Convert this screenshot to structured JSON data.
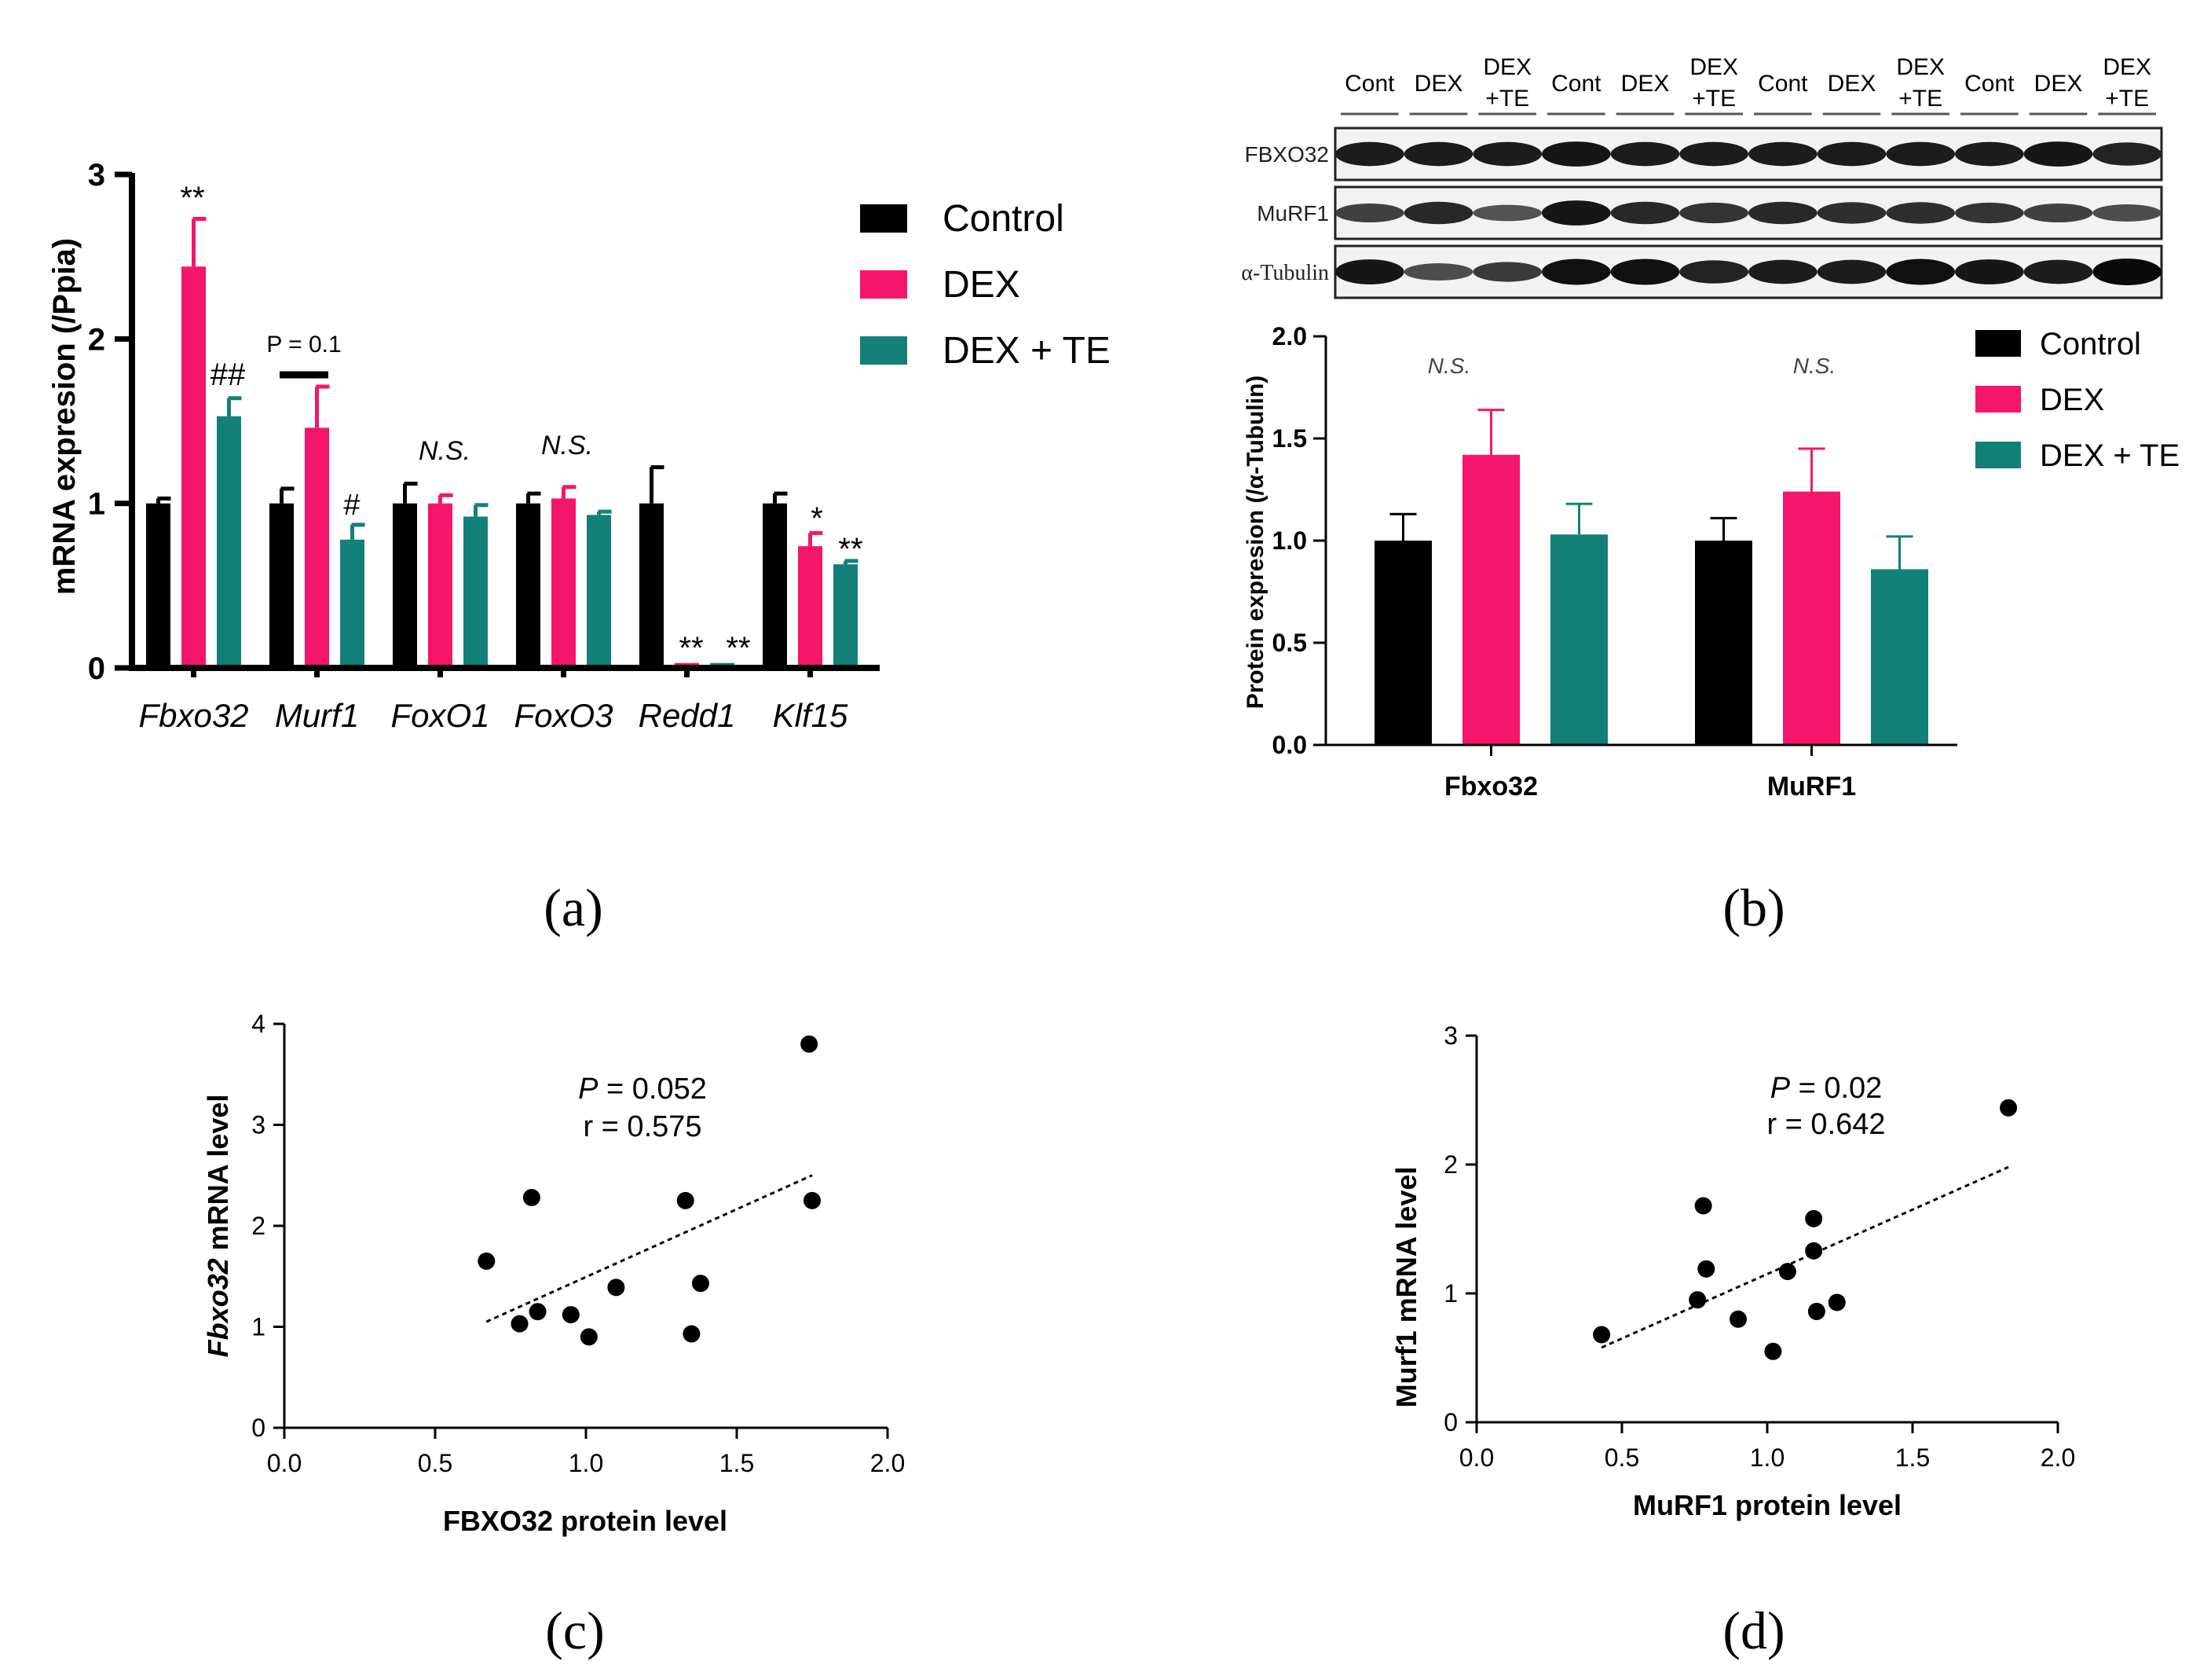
{
  "colors": {
    "control": "#000000",
    "dex": "#F5166B",
    "dexte": "#128078"
  },
  "panel_labels": {
    "a": "(a)",
    "b": "(b)",
    "c": "(c)",
    "d": "(d)"
  },
  "chart_data": [
    {
      "id": "a",
      "type": "bar",
      "ylabel": "mRNA expresion (/Ppia)",
      "ylim": [
        0,
        3
      ],
      "yticks": [
        "0",
        "1",
        "2",
        "3"
      ],
      "categories": [
        "Fbxo32",
        "Murf1",
        "FoxO1",
        "FoxO3",
        "Redd1",
        "Klf15"
      ],
      "legend": [
        "Control",
        "DEX",
        "DEX + TE"
      ],
      "series": [
        {
          "name": "Control",
          "values": [
            1.0,
            1.0,
            1.0,
            1.0,
            1.0,
            1.0
          ],
          "errors": [
            0.03,
            0.09,
            0.12,
            0.06,
            0.22,
            0.06
          ]
        },
        {
          "name": "DEX",
          "values": [
            2.44,
            1.46,
            1.0,
            1.03,
            0.03,
            0.74
          ],
          "errors": [
            0.29,
            0.25,
            0.05,
            0.07,
            0.0,
            0.08
          ]
        },
        {
          "name": "DEX + TE",
          "values": [
            1.53,
            0.78,
            0.92,
            0.93,
            0.03,
            0.63
          ],
          "errors": [
            0.11,
            0.09,
            0.07,
            0.02,
            0.0,
            0.02
          ]
        }
      ],
      "annotations": {
        "fbxo32_dex": "**",
        "fbxo32_te": "##",
        "murf1_p": "P = 0.1",
        "murf1_te": "#",
        "foxo1_ns": "N.S.",
        "foxo3_ns": "N.S.",
        "redd1_dex": "**",
        "redd1_te": "**",
        "klf15_dex": "*",
        "klf15_te": "**"
      }
    },
    {
      "id": "b",
      "type": "bar",
      "ylabel": "Protein expresion (/α-Tubulin)",
      "ylim": [
        0,
        2
      ],
      "yticks": [
        "0.0",
        "0.5",
        "1.0",
        "1.5",
        "2.0"
      ],
      "categories": [
        "Fbxo32",
        "MuRF1"
      ],
      "legend": [
        "Control",
        "DEX",
        "DEX + TE"
      ],
      "series": [
        {
          "name": "Control",
          "values": [
            1.0,
            1.0
          ],
          "errors": [
            0.13,
            0.11
          ]
        },
        {
          "name": "DEX",
          "values": [
            1.42,
            1.24
          ],
          "errors": [
            0.22,
            0.21
          ]
        },
        {
          "name": "DEX + TE",
          "values": [
            1.03,
            0.86
          ],
          "errors": [
            0.15,
            0.16
          ]
        }
      ],
      "annotations": {
        "fbxo32_ns": "N.S.",
        "murf1_ns": "N.S."
      },
      "blot": {
        "lanes": [
          "Cont",
          "DEX",
          "DEX\n+TE",
          "Cont",
          "DEX",
          "DEX\n+TE",
          "Cont",
          "DEX",
          "DEX\n+TE",
          "Cont",
          "DEX",
          "DEX\n+TE"
        ],
        "rows": [
          {
            "label": "FBXO32",
            "intensity": [
              0.85,
              0.85,
              0.85,
              0.9,
              0.85,
              0.85,
              0.85,
              0.85,
              0.85,
              0.85,
              0.9,
              0.8
            ]
          },
          {
            "label": "MuRF1",
            "intensity": [
              0.55,
              0.75,
              0.4,
              0.9,
              0.75,
              0.65,
              0.75,
              0.7,
              0.7,
              0.65,
              0.55,
              0.45
            ]
          },
          {
            "label": "α-Tubulin",
            "intensity": [
              0.9,
              0.45,
              0.6,
              0.95,
              0.95,
              0.8,
              0.85,
              0.85,
              0.95,
              0.9,
              0.85,
              1.0
            ]
          }
        ]
      }
    },
    {
      "id": "c",
      "type": "scatter",
      "xlabel": "FBXO32 protein level",
      "ylabel_italic": "Fbxo32",
      "ylabel_rest": " mRNA level",
      "xlim": [
        0,
        2
      ],
      "ylim": [
        0,
        4
      ],
      "xticks": [
        "0.0",
        "0.5",
        "1.0",
        "1.5",
        "2.0"
      ],
      "yticks": [
        "0",
        "1",
        "2",
        "3",
        "4"
      ],
      "points": [
        [
          0.67,
          1.65
        ],
        [
          0.78,
          1.03
        ],
        [
          0.82,
          2.28
        ],
        [
          0.84,
          1.15
        ],
        [
          0.95,
          1.12
        ],
        [
          1.01,
          0.9
        ],
        [
          1.1,
          1.39
        ],
        [
          1.33,
          2.25
        ],
        [
          1.35,
          0.93
        ],
        [
          1.38,
          1.43
        ],
        [
          1.74,
          3.8
        ],
        [
          1.75,
          2.25
        ]
      ],
      "fit": [
        [
          0.67,
          1.05
        ],
        [
          1.75,
          2.5
        ]
      ],
      "stat_p_italic": "P",
      "stat_p_rest": " = 0.052",
      "stat_r": "r = 0.575"
    },
    {
      "id": "d",
      "type": "scatter",
      "xlabel": "MuRF1 protein level",
      "ylabel": "Murf1 mRNA level",
      "xlim": [
        0,
        2
      ],
      "ylim": [
        0,
        3
      ],
      "xticks": [
        "0.0",
        "0.5",
        "1.0",
        "1.5",
        "2.0"
      ],
      "yticks": [
        "0",
        "1",
        "2",
        "3"
      ],
      "points": [
        [
          0.43,
          0.68
        ],
        [
          0.76,
          0.95
        ],
        [
          0.78,
          1.68
        ],
        [
          0.79,
          1.19
        ],
        [
          0.9,
          0.8
        ],
        [
          1.02,
          0.55
        ],
        [
          1.07,
          1.17
        ],
        [
          1.16,
          1.58
        ],
        [
          1.16,
          1.33
        ],
        [
          1.17,
          0.86
        ],
        [
          1.24,
          0.93
        ],
        [
          1.83,
          2.44
        ]
      ],
      "fit": [
        [
          0.43,
          0.58
        ],
        [
          1.83,
          1.98
        ]
      ],
      "stat_p_italic": "P",
      "stat_p_rest": " = 0.02",
      "stat_r": "r = 0.642"
    }
  ]
}
